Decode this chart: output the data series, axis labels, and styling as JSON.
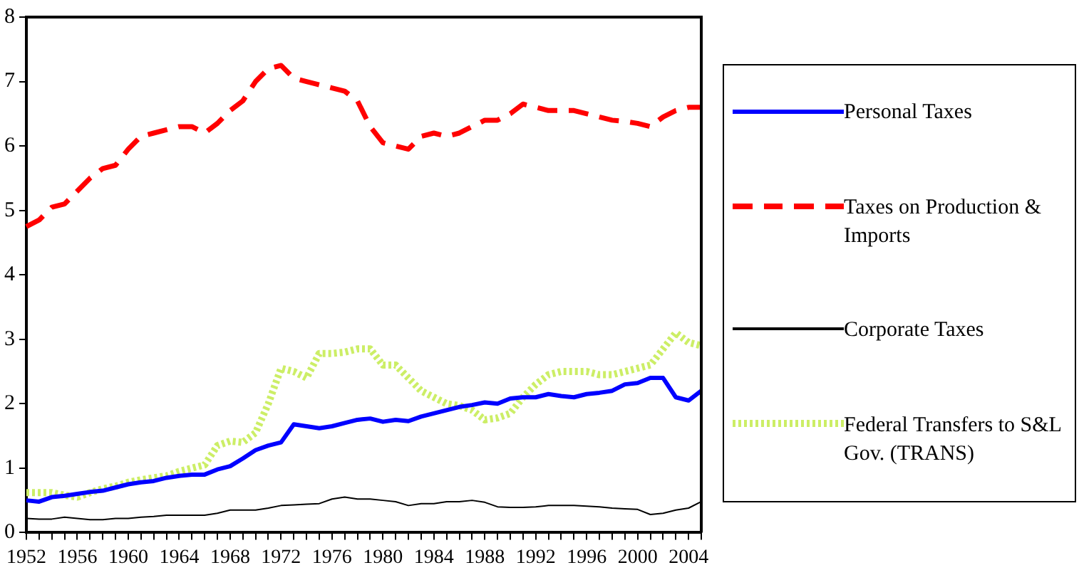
{
  "chart_data": {
    "type": "line",
    "categories": [
      "1952",
      null,
      null,
      null,
      "1956",
      null,
      null,
      null,
      "1960",
      null,
      null,
      null,
      "1964",
      null,
      null,
      null,
      "1968",
      null,
      null,
      null,
      "1972",
      null,
      null,
      null,
      "1976",
      null,
      null,
      null,
      "1980",
      null,
      null,
      null,
      "1984",
      null,
      null,
      null,
      "1988",
      null,
      null,
      null,
      "1992",
      null,
      null,
      null,
      "1996",
      null,
      null,
      null,
      "2000",
      null,
      null,
      null,
      "2004",
      null
    ],
    "ylim": [
      0,
      8
    ],
    "yticks": [
      0,
      1,
      2,
      3,
      4,
      5,
      6,
      7,
      8
    ],
    "grid": false,
    "legend": "right",
    "marker": "none",
    "series": [
      {
        "name": "Personal Taxes",
        "color": "#0000ff",
        "line_style": "solid",
        "values": [
          0.5,
          0.48,
          0.55,
          0.57,
          0.6,
          0.63,
          0.65,
          0.7,
          0.75,
          0.78,
          0.8,
          0.85,
          0.88,
          0.9,
          0.9,
          0.98,
          1.03,
          1.15,
          1.28,
          1.35,
          1.4,
          1.68,
          1.65,
          1.62,
          1.65,
          1.7,
          1.75,
          1.77,
          1.72,
          1.75,
          1.73,
          1.8,
          1.85,
          1.9,
          1.95,
          1.98,
          2.02,
          2.0,
          2.08,
          2.1,
          2.1,
          2.15,
          2.12,
          2.1,
          2.15,
          2.17,
          2.2,
          2.3,
          2.32,
          2.4,
          2.4,
          2.1,
          2.05,
          2.2
        ]
      },
      {
        "name": "Taxes on Production & Imports",
        "color": "#ff0000",
        "line_style": "dashed",
        "values": [
          4.75,
          4.85,
          5.05,
          5.1,
          5.3,
          5.5,
          5.65,
          5.7,
          5.95,
          6.15,
          6.2,
          6.25,
          6.3,
          6.3,
          6.2,
          6.35,
          6.55,
          6.7,
          7.0,
          7.2,
          7.25,
          7.05,
          7.0,
          6.95,
          6.9,
          6.85,
          6.7,
          6.3,
          6.05,
          6.0,
          5.95,
          6.15,
          6.2,
          6.15,
          6.2,
          6.3,
          6.4,
          6.4,
          6.5,
          6.65,
          6.6,
          6.55,
          6.55,
          6.55,
          6.5,
          6.45,
          6.4,
          6.38,
          6.35,
          6.3,
          6.45,
          6.55,
          6.6,
          6.6
        ]
      },
      {
        "name": "Corporate Taxes",
        "color": "#000000",
        "line_style": "solid",
        "values": [
          0.22,
          0.21,
          0.21,
          0.24,
          0.22,
          0.2,
          0.2,
          0.22,
          0.22,
          0.24,
          0.25,
          0.27,
          0.27,
          0.27,
          0.27,
          0.3,
          0.35,
          0.35,
          0.35,
          0.38,
          0.42,
          0.43,
          0.44,
          0.45,
          0.52,
          0.55,
          0.52,
          0.52,
          0.5,
          0.48,
          0.42,
          0.45,
          0.45,
          0.48,
          0.48,
          0.5,
          0.47,
          0.4,
          0.39,
          0.39,
          0.4,
          0.42,
          0.42,
          0.42,
          0.41,
          0.4,
          0.38,
          0.37,
          0.36,
          0.28,
          0.3,
          0.35,
          0.38,
          0.48
        ]
      },
      {
        "name": "Federal Transfers to S&L Gov. (TRANS)",
        "color": "#ccee66",
        "line_style": "dotted",
        "values": [
          0.62,
          0.62,
          0.62,
          0.58,
          0.55,
          0.62,
          0.68,
          0.72,
          0.78,
          0.82,
          0.85,
          0.88,
          0.95,
          1.0,
          1.05,
          1.35,
          1.42,
          1.4,
          1.55,
          2.0,
          2.55,
          2.5,
          2.4,
          2.78,
          2.78,
          2.8,
          2.85,
          2.85,
          2.6,
          2.6,
          2.4,
          2.2,
          2.1,
          2.0,
          1.97,
          1.9,
          1.75,
          1.78,
          1.85,
          2.1,
          2.3,
          2.45,
          2.5,
          2.5,
          2.5,
          2.45,
          2.45,
          2.5,
          2.55,
          2.6,
          2.85,
          3.1,
          2.95,
          2.9
        ]
      }
    ]
  }
}
